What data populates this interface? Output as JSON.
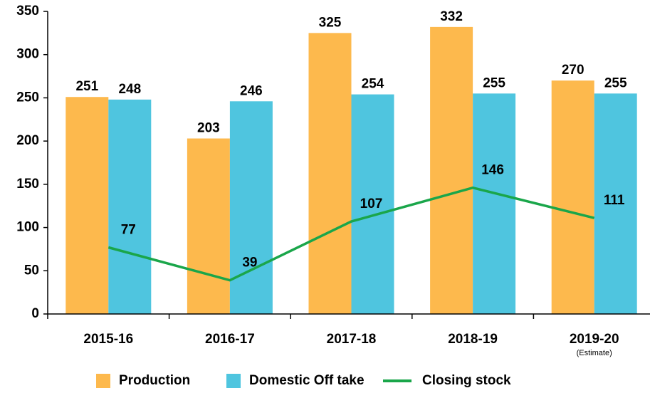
{
  "chart_data": {
    "type": "bar",
    "categories": [
      "2015-16",
      "2016-17",
      "2017-18",
      "2018-19",
      "2019-20"
    ],
    "annotation": "(Estimate)",
    "series": [
      {
        "name": "Production",
        "type": "bar",
        "color": "#fdb94d",
        "values": [
          251,
          203,
          325,
          332,
          270
        ]
      },
      {
        "name": "Domestic Off take",
        "type": "bar",
        "color": "#4fc5df",
        "values": [
          248,
          246,
          254,
          255,
          255
        ]
      },
      {
        "name": "Closing stock",
        "type": "line",
        "color": "#1aa64a",
        "values": [
          77,
          39,
          107,
          146,
          111
        ]
      }
    ],
    "ylim": [
      0,
      350
    ],
    "yticks": [
      0,
      50,
      100,
      150,
      200,
      250,
      300,
      350
    ],
    "grid": false,
    "legend": "bottom"
  }
}
